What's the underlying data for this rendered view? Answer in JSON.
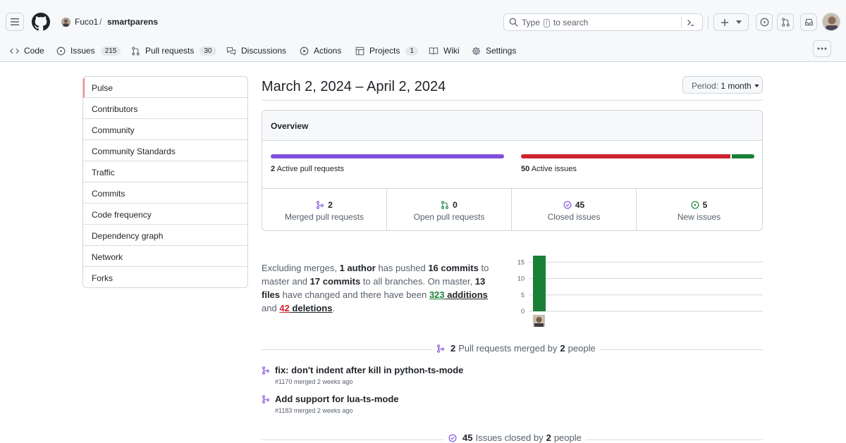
{
  "header": {
    "owner": "Fuco1",
    "separator": "/",
    "repo": "smartparens",
    "search_prefix": "Type ",
    "search_key": "/",
    "search_suffix": " to search"
  },
  "nav": {
    "items": [
      {
        "label": "Code",
        "icon": "code-icon"
      },
      {
        "label": "Issues",
        "icon": "issue-opened-icon",
        "count": "215"
      },
      {
        "label": "Pull requests",
        "icon": "git-pull-request-icon",
        "count": "30"
      },
      {
        "label": "Discussions",
        "icon": "comment-discussion-icon"
      },
      {
        "label": "Actions",
        "icon": "play-icon"
      },
      {
        "label": "Projects",
        "icon": "table-icon",
        "count": "1"
      },
      {
        "label": "Wiki",
        "icon": "book-icon"
      },
      {
        "label": "Settings",
        "icon": "gear-icon"
      }
    ]
  },
  "sidebar": {
    "items": [
      {
        "label": "Pulse"
      },
      {
        "label": "Contributors"
      },
      {
        "label": "Community"
      },
      {
        "label": "Community Standards"
      },
      {
        "label": "Traffic"
      },
      {
        "label": "Commits"
      },
      {
        "label": "Code frequency"
      },
      {
        "label": "Dependency graph"
      },
      {
        "label": "Network"
      },
      {
        "label": "Forks"
      }
    ]
  },
  "main": {
    "date_range": "March 2, 2024 – April 2, 2024",
    "period_label": "Period:",
    "period_value": "1 month"
  },
  "overview": {
    "title": "Overview",
    "active_pr_count": "2",
    "active_pr_label": " Active pull requests",
    "active_issues_count": "50",
    "active_issues_label": " Active issues",
    "issues_closed_fraction": 0.9,
    "stats": [
      {
        "value": "2",
        "label": "Merged pull requests",
        "icon": "git-merge-icon"
      },
      {
        "value": "0",
        "label": "Open pull requests",
        "icon": "git-pull-request-icon"
      },
      {
        "value": "45",
        "label": "Closed issues",
        "icon": "issue-closed-icon"
      },
      {
        "value": "5",
        "label": "New issues",
        "icon": "issue-opened-icon"
      }
    ]
  },
  "summary": {
    "t1": "Excluding merges, ",
    "authors": "1 author",
    "t2": " has pushed ",
    "commits_master": "16 commits",
    "t3": " to master and ",
    "commits_all": "17 commits",
    "t4": " to all branches. On master, ",
    "files": "13 files",
    "t5": " have changed and there have been ",
    "additions_num": "323",
    "additions_word": " additions",
    "t6": " and ",
    "deletions_num": "42",
    "deletions_word": " deletions",
    "t7": "."
  },
  "chart_data": {
    "type": "bar",
    "categories": [
      "Fuco1"
    ],
    "values": [
      17
    ],
    "ylim": [
      0,
      17
    ],
    "yticks": [
      0,
      5,
      10,
      15
    ],
    "bar_color": "#1a7f37",
    "grid": true
  },
  "pr_section": {
    "count": "2",
    "t1": "Pull requests merged by",
    "people": "2",
    "t2": "people",
    "items": [
      {
        "title": "fix: don't indent after kill in python-ts-mode",
        "meta": "#1170 merged 2 weeks ago"
      },
      {
        "title": "Add support for lua-ts-mode",
        "meta": "#1183 merged 2 weeks ago"
      }
    ]
  },
  "issues_section": {
    "count": "45",
    "t1": "Issues closed by",
    "people": "2",
    "t2": "people"
  }
}
